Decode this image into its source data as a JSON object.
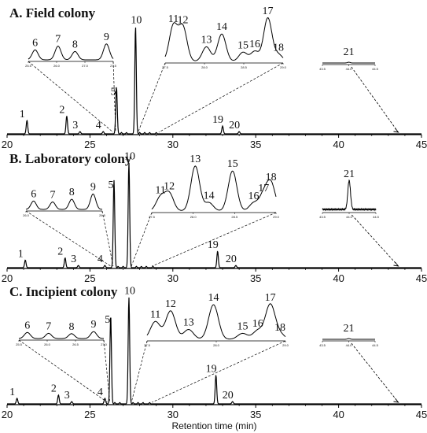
{
  "chart_data": {
    "type": "line",
    "xlabel": "Retention time (min)",
    "xlim": [
      20,
      45
    ],
    "xticks": [
      "20",
      "25",
      "30",
      "35",
      "40",
      "45"
    ],
    "panels": [
      {
        "id": "A",
        "title": "A.  Field colony",
        "peaks": [
          {
            "label": "1",
            "x": 21.2,
            "h": 0.12
          },
          {
            "label": "2",
            "x": 23.6,
            "h": 0.16
          },
          {
            "label": "3",
            "x": 24.4,
            "h": 0.02
          },
          {
            "label": "4",
            "x": 25.8,
            "h": 0.02
          },
          {
            "label": "5",
            "x": 26.6,
            "h": 0.42
          },
          {
            "label": "10",
            "x": 27.75,
            "h": 0.96
          },
          {
            "label": "19",
            "x": 33.0,
            "h": 0.07
          },
          {
            "label": "20",
            "x": 34.0,
            "h": 0.02
          }
        ],
        "insets": [
          {
            "group": "6-9",
            "ticks": [
              "25.5",
              "26.0",
              "27.0",
              "27.5"
            ],
            "peaks": [
              {
                "label": "6",
                "x": 0.08,
                "h": 0.45
              },
              {
                "label": "7",
                "x": 0.35,
                "h": 0.62
              },
              {
                "label": "8",
                "x": 0.55,
                "h": 0.38
              },
              {
                "label": "9",
                "x": 0.92,
                "h": 0.72
              }
            ]
          },
          {
            "group": "11-18",
            "ticks": [
              "27.5",
              "28.0",
              "28.5",
              "29.0"
            ],
            "peaks": [
              {
                "label": "11",
                "x": 0.07,
                "h": 0.78
              },
              {
                "label": "12",
                "x": 0.15,
                "h": 0.75
              },
              {
                "label": "13",
                "x": 0.35,
                "h": 0.32
              },
              {
                "label": "14",
                "x": 0.48,
                "h": 0.6
              },
              {
                "label": "15",
                "x": 0.66,
                "h": 0.2
              },
              {
                "label": "16",
                "x": 0.76,
                "h": 0.22
              },
              {
                "label": "17",
                "x": 0.87,
                "h": 0.95
              },
              {
                "label": "18",
                "x": 0.96,
                "h": 0.15
              }
            ]
          },
          {
            "group": "21",
            "ticks": [
              "43.5",
              "44.0",
              "44.5"
            ],
            "peaks": [
              {
                "label": "21",
                "x": 0.5,
                "h": 0.08
              }
            ]
          }
        ]
      },
      {
        "id": "B",
        "title": "B.  Laboratory colony",
        "peaks": [
          {
            "label": "1",
            "x": 21.1,
            "h": 0.07
          },
          {
            "label": "2",
            "x": 23.5,
            "h": 0.09
          },
          {
            "label": "3",
            "x": 24.3,
            "h": 0.02
          },
          {
            "label": "4",
            "x": 25.9,
            "h": 0.02
          },
          {
            "label": "5",
            "x": 26.45,
            "h": 0.8
          },
          {
            "label": "10",
            "x": 27.35,
            "h": 0.96
          },
          {
            "label": "19",
            "x": 32.7,
            "h": 0.15
          },
          {
            "label": "20",
            "x": 33.8,
            "h": 0.02
          }
        ],
        "insets": [
          {
            "group": "6-9",
            "ticks": [
              "26.0",
              "26.5"
            ],
            "peaks": [
              {
                "label": "6",
                "x": 0.1,
                "h": 0.38
              },
              {
                "label": "7",
                "x": 0.35,
                "h": 0.34
              },
              {
                "label": "8",
                "x": 0.6,
                "h": 0.46
              },
              {
                "label": "9",
                "x": 0.88,
                "h": 0.7
              }
            ]
          },
          {
            "group": "11-18",
            "ticks": [
              "27.5",
              "28.0",
              "28.5",
              "29.0"
            ],
            "peaks": [
              {
                "label": "11",
                "x": 0.07,
                "h": 0.28
              },
              {
                "label": "12",
                "x": 0.14,
                "h": 0.36
              },
              {
                "label": "13",
                "x": 0.35,
                "h": 0.92
              },
              {
                "label": "14",
                "x": 0.46,
                "h": 0.17
              },
              {
                "label": "15",
                "x": 0.65,
                "h": 0.82
              },
              {
                "label": "16",
                "x": 0.82,
                "h": 0.16
              },
              {
                "label": "17",
                "x": 0.9,
                "h": 0.32
              },
              {
                "label": "18",
                "x": 0.96,
                "h": 0.55
              }
            ]
          },
          {
            "group": "21",
            "ticks": [
              "43.5",
              "44.0",
              "44.5"
            ],
            "peaks": [
              {
                "label": "21",
                "x": 0.5,
                "h": 0.92
              }
            ]
          }
        ]
      },
      {
        "id": "C",
        "title": "C.  Incipient colony",
        "peaks": [
          {
            "label": "1",
            "x": 20.6,
            "h": 0.05
          },
          {
            "label": "2",
            "x": 23.1,
            "h": 0.08
          },
          {
            "label": "3",
            "x": 23.9,
            "h": 0.02
          },
          {
            "label": "4",
            "x": 25.9,
            "h": 0.05
          },
          {
            "label": "5",
            "x": 26.25,
            "h": 0.8
          },
          {
            "label": "10",
            "x": 27.35,
            "h": 0.96
          },
          {
            "label": "19",
            "x": 32.6,
            "h": 0.26
          },
          {
            "label": "20",
            "x": 33.6,
            "h": 0.02
          }
        ],
        "insets": [
          {
            "group": "6-9",
            "ticks": [
              "25.5",
              "26.0",
              "26.5",
              "27.0"
            ],
            "peaks": [
              {
                "label": "6",
                "x": 0.1,
                "h": 0.35
              },
              {
                "label": "7",
                "x": 0.35,
                "h": 0.3
              },
              {
                "label": "8",
                "x": 0.62,
                "h": 0.28
              },
              {
                "label": "9",
                "x": 0.88,
                "h": 0.4
              }
            ]
          },
          {
            "group": "11-18",
            "ticks": [
              "27.5",
              "28.0",
              "29.0"
            ],
            "peaks": [
              {
                "label": "11",
                "x": 0.06,
                "h": 0.45
              },
              {
                "label": "12",
                "x": 0.17,
                "h": 0.72
              },
              {
                "label": "13",
                "x": 0.3,
                "h": 0.25
              },
              {
                "label": "14",
                "x": 0.48,
                "h": 0.88
              },
              {
                "label": "15",
                "x": 0.69,
                "h": 0.15
              },
              {
                "label": "16",
                "x": 0.8,
                "h": 0.22
              },
              {
                "label": "17",
                "x": 0.89,
                "h": 0.88
              },
              {
                "label": "18",
                "x": 0.96,
                "h": 0.12
              }
            ]
          },
          {
            "group": "21",
            "ticks": [
              "43.5",
              "44.0",
              "44.5"
            ],
            "peaks": [
              {
                "label": "21",
                "x": 0.5,
                "h": 0.08
              }
            ]
          }
        ]
      }
    ]
  }
}
